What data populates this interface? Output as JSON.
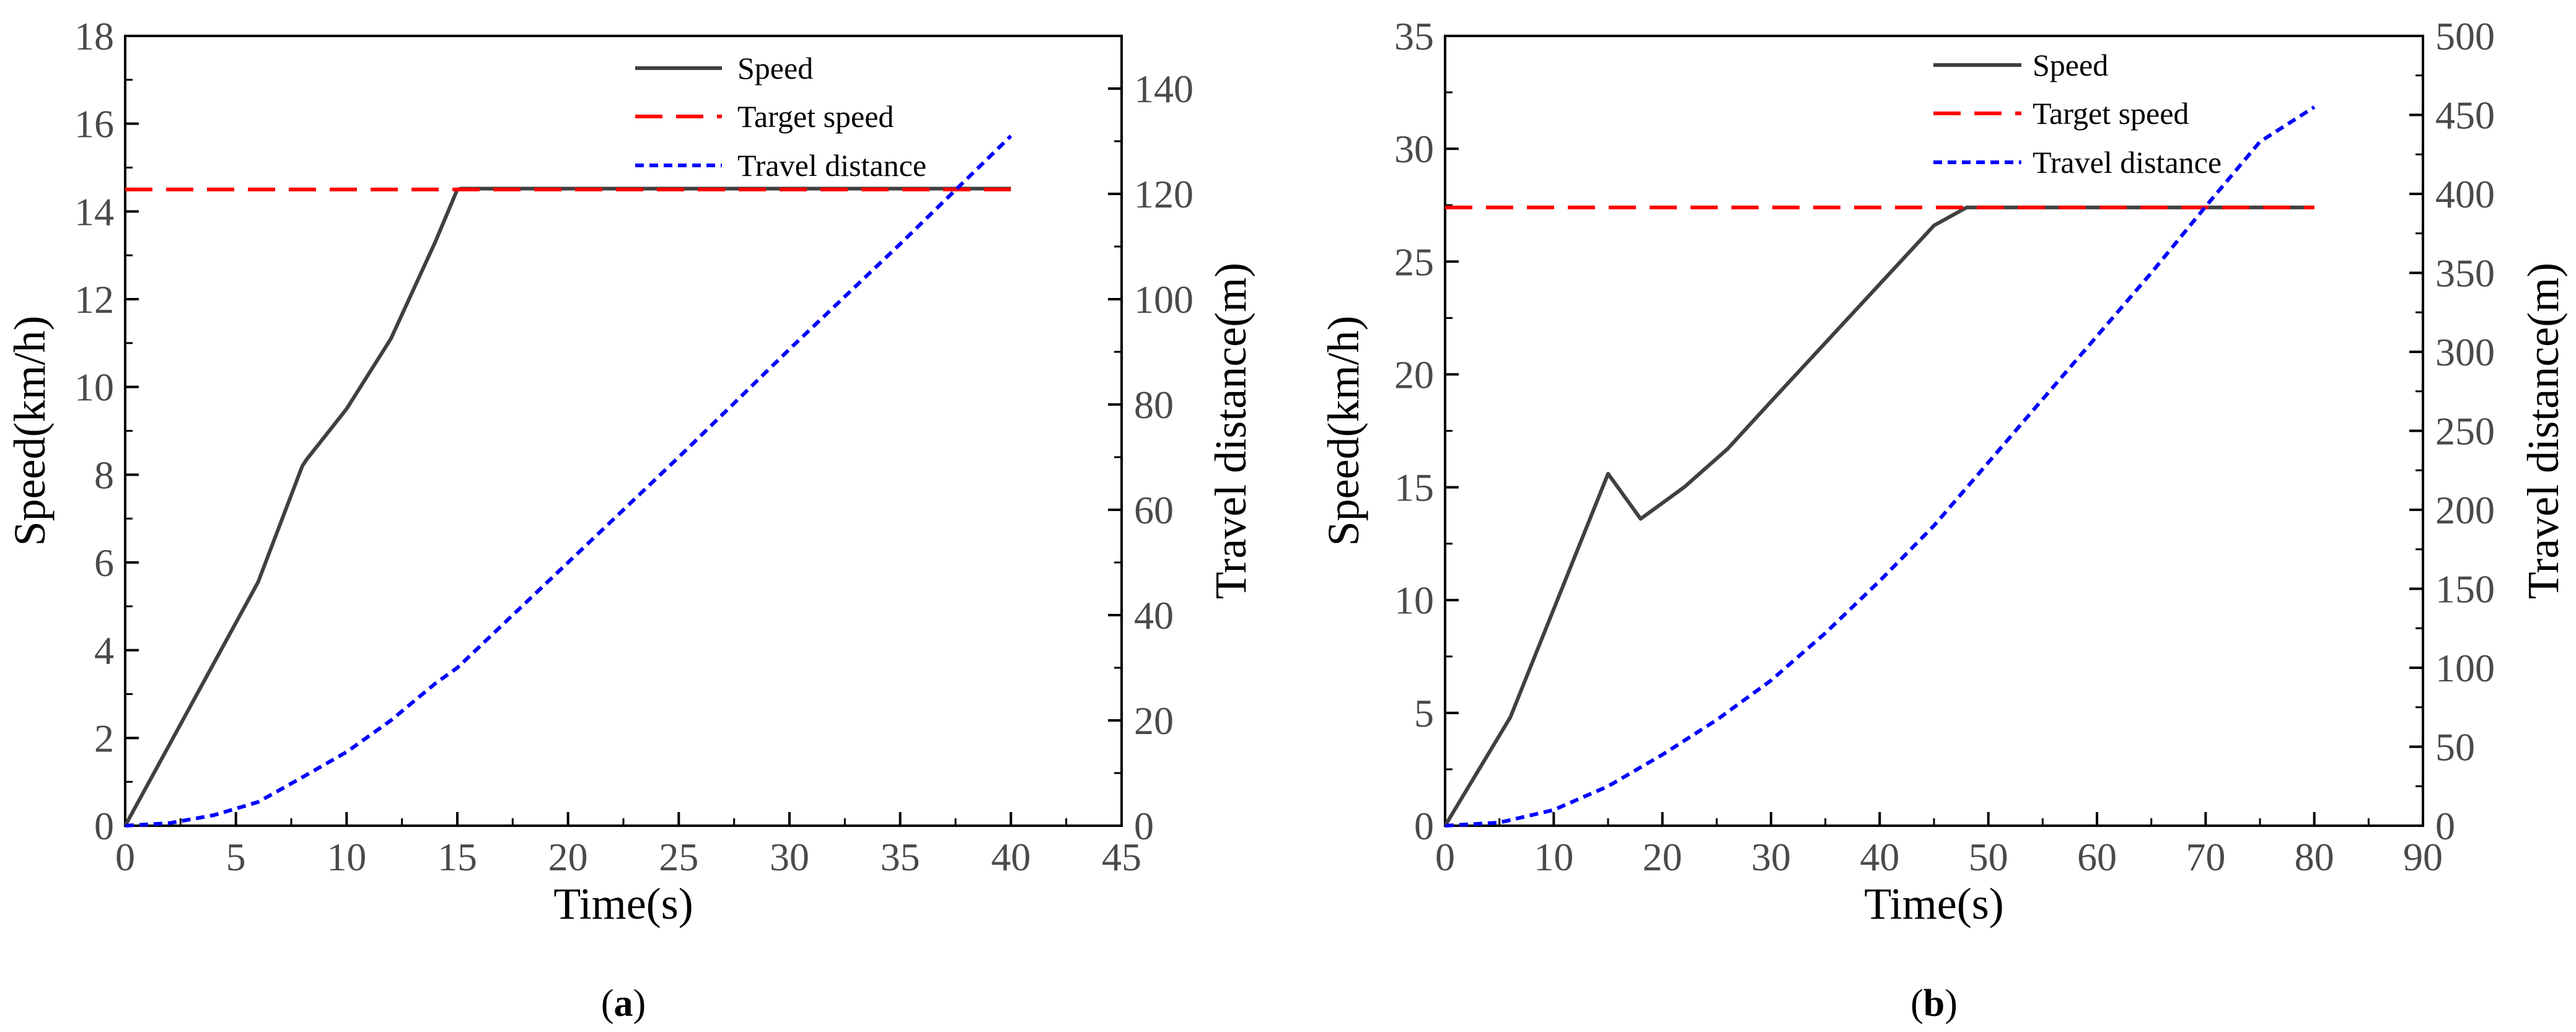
{
  "chart_data": [
    {
      "type": "line",
      "panel": "a",
      "caption": {
        "open": "(",
        "letter": "a",
        "close": ")"
      },
      "xlabel": "Time(s)",
      "ylabel": "Speed(km/h)",
      "y2label": "Travel distance(m)",
      "xlim": [
        0,
        45
      ],
      "ylim": [
        0,
        18
      ],
      "y2lim": [
        0,
        150
      ],
      "xticks": [
        0,
        5,
        10,
        15,
        20,
        25,
        30,
        35,
        40,
        45
      ],
      "yticks": [
        0,
        2,
        4,
        6,
        8,
        10,
        12,
        14,
        16,
        18
      ],
      "y2ticks": [
        0,
        20,
        40,
        60,
        80,
        100,
        120,
        140
      ],
      "legend_position": "top-right",
      "series": [
        {
          "name": "Speed",
          "axis": "left",
          "color": "#404040",
          "style": "solid",
          "x": [
            0,
            2,
            4,
            6,
            8,
            8.2,
            10,
            12,
            14,
            15,
            15.2,
            20,
            30,
            40
          ],
          "y": [
            0,
            1.85,
            3.7,
            5.55,
            8.2,
            8.35,
            9.5,
            11.1,
            13.3,
            14.5,
            14.52,
            14.52,
            14.52,
            14.52
          ]
        },
        {
          "name": "Target speed",
          "axis": "left",
          "color": "#ff0000",
          "style": "dashed",
          "x": [
            0,
            40
          ],
          "y": [
            14.5,
            14.5
          ]
        },
        {
          "name": "Travel distance",
          "axis": "right",
          "color": "#0000ff",
          "style": "dotted",
          "x": [
            0,
            2,
            4,
            6,
            8,
            10,
            12,
            14,
            15,
            20,
            25,
            30,
            35,
            40
          ],
          "y": [
            0,
            0.5,
            2,
            4.5,
            9.2,
            14,
            20,
            27,
            30,
            50,
            70,
            90.5,
            110.5,
            131
          ]
        }
      ]
    },
    {
      "type": "line",
      "panel": "b",
      "caption": {
        "open": "(",
        "letter": "b",
        "close": ")"
      },
      "xlabel": "Time(s)",
      "ylabel": "Speed(km/h)",
      "y2label": "Travel distance(m)",
      "xlim": [
        0,
        90
      ],
      "ylim": [
        0,
        35
      ],
      "y2lim": [
        0,
        500
      ],
      "xticks": [
        0,
        10,
        20,
        30,
        40,
        50,
        60,
        70,
        80,
        90
      ],
      "yticks": [
        0,
        5,
        10,
        15,
        20,
        25,
        30,
        35
      ],
      "y2ticks": [
        0,
        50,
        100,
        150,
        200,
        250,
        300,
        350,
        400,
        450,
        500
      ],
      "legend_position": "top-right",
      "series": [
        {
          "name": "Speed",
          "axis": "left",
          "color": "#404040",
          "style": "solid",
          "x": [
            0,
            6,
            15,
            18,
            22,
            26,
            30,
            35,
            40,
            45,
            48,
            50,
            60,
            70,
            80
          ],
          "y": [
            0,
            4.8,
            15.6,
            13.6,
            15,
            16.7,
            18.8,
            21.4,
            24,
            26.6,
            27.4,
            27.4,
            27.4,
            27.4,
            27.4
          ]
        },
        {
          "name": "Target speed",
          "axis": "left",
          "color": "#ff0000",
          "style": "dashed",
          "x": [
            0,
            80
          ],
          "y": [
            27.4,
            27.4
          ]
        },
        {
          "name": "Travel distance",
          "axis": "right",
          "color": "#0000ff",
          "style": "dotted",
          "x": [
            0,
            5,
            10,
            15,
            20,
            25,
            30,
            35,
            40,
            45,
            50,
            55,
            60,
            65,
            70,
            75,
            80
          ],
          "y": [
            0,
            2,
            10,
            25,
            45,
            67,
            92,
            122,
            155,
            190,
            230,
            270,
            310,
            350,
            392,
            433,
            455
          ]
        }
      ]
    }
  ]
}
